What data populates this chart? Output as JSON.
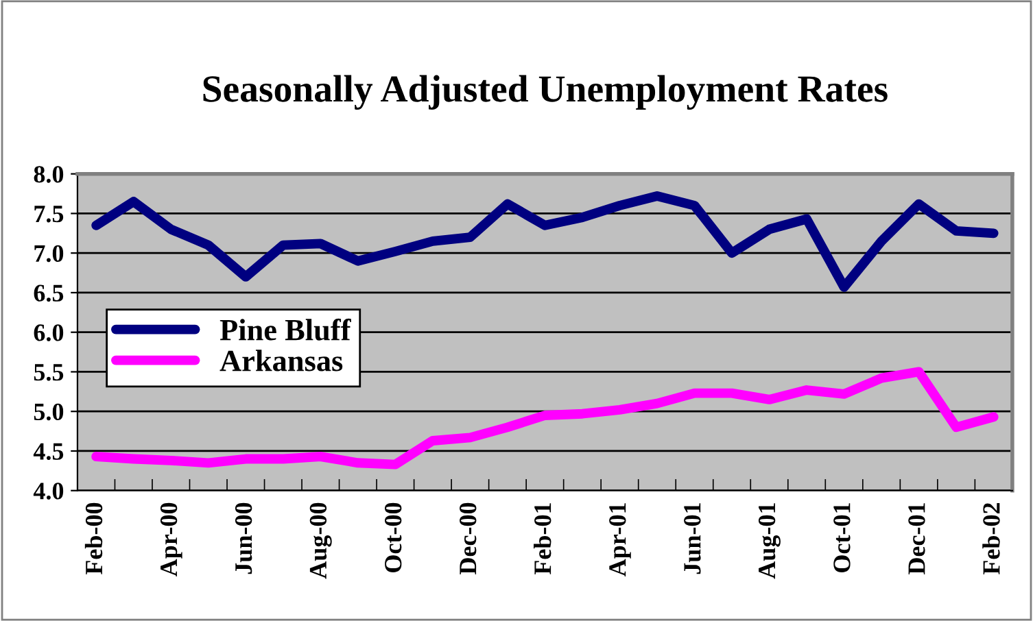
{
  "chart_data": {
    "type": "line",
    "title": "Seasonally Adjusted Unemployment Rates",
    "categories": [
      "Feb-00",
      null,
      "Apr-00",
      null,
      "Jun-00",
      null,
      "Aug-00",
      null,
      "Oct-00",
      null,
      "Dec-00",
      null,
      "Feb-01",
      null,
      "Apr-01",
      null,
      "Jun-01",
      null,
      "Aug-01",
      null,
      "Oct-01",
      null,
      "Dec-01",
      null,
      "Feb-02"
    ],
    "series": [
      {
        "name": "Pine Bluff",
        "color": "#000080",
        "values": [
          7.35,
          7.65,
          7.3,
          7.1,
          6.7,
          7.1,
          7.12,
          6.9,
          7.02,
          7.15,
          7.2,
          7.62,
          7.35,
          7.45,
          7.6,
          7.72,
          7.6,
          7.0,
          7.3,
          7.43,
          6.57,
          7.15,
          7.62,
          7.28,
          7.25
        ]
      },
      {
        "name": "Arkansas",
        "color": "#ff00ff",
        "values": [
          4.43,
          4.4,
          4.38,
          4.35,
          4.4,
          4.4,
          4.43,
          4.35,
          4.33,
          4.63,
          4.67,
          4.8,
          4.95,
          4.97,
          5.02,
          5.1,
          5.23,
          5.23,
          5.15,
          5.27,
          5.22,
          5.42,
          5.5,
          4.8,
          4.93
        ]
      }
    ],
    "ylim": [
      4.0,
      8.0
    ],
    "yticks": [
      {
        "value": 4.0,
        "label": "4.0"
      },
      {
        "value": 4.5,
        "label": "4.5"
      },
      {
        "value": 5.0,
        "label": "5.0"
      },
      {
        "value": 5.5,
        "label": "5.5"
      },
      {
        "value": 6.0,
        "label": "6.0"
      },
      {
        "value": 6.5,
        "label": "6.5"
      },
      {
        "value": 7.0,
        "label": "7.0"
      },
      {
        "value": 7.5,
        "label": "7.5"
      },
      {
        "value": 8.0,
        "label": "8.0"
      }
    ],
    "grid": "y",
    "legend": "left",
    "marker": "none",
    "line_style": "solid"
  }
}
